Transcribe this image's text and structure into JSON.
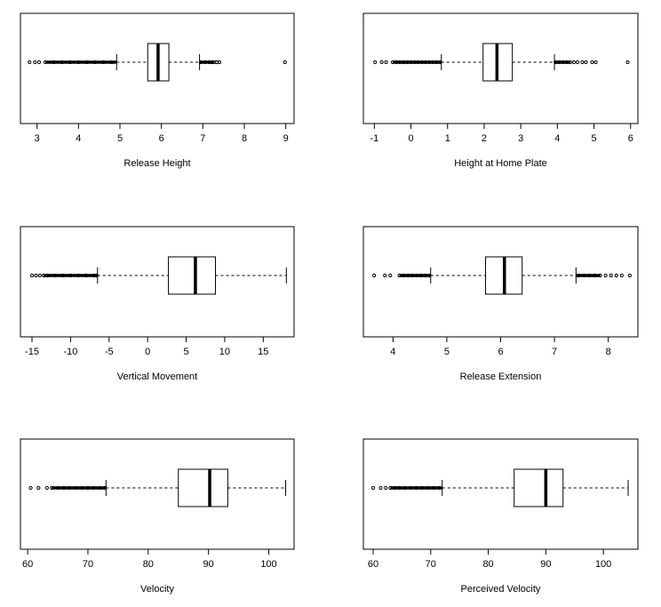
{
  "chart_data": [
    {
      "type": "boxplot",
      "xlabel": "Release Height",
      "xlim": [
        2.6,
        9.2
      ],
      "ticks": [
        3,
        4,
        5,
        6,
        7,
        8,
        9
      ],
      "whisker_low": 4.92,
      "q1": 5.67,
      "median": 5.92,
      "q3": 6.18,
      "whisker_high": 6.92,
      "outliers_low": [
        2.82,
        2.95,
        3.05,
        3.2,
        3.4,
        3.6,
        3.8,
        4.0,
        4.2,
        4.4,
        4.6,
        4.8
      ],
      "outliers_high": [
        6.95,
        7.05,
        7.15,
        7.22,
        7.28,
        7.34,
        7.4,
        8.98
      ]
    },
    {
      "type": "boxplot",
      "xlabel": "Height at Home Plate",
      "xlim": [
        -1.3,
        6.2
      ],
      "ticks": [
        -1,
        0,
        1,
        2,
        3,
        4,
        5,
        6
      ],
      "whisker_low": 0.83,
      "q1": 1.97,
      "median": 2.35,
      "q3": 2.77,
      "whisker_high": 3.92,
      "outliers_low": [
        -0.98,
        -0.8,
        -0.68,
        -0.5,
        -0.4,
        -0.3,
        -0.2,
        -0.1,
        0.0,
        0.1,
        0.2,
        0.3,
        0.4,
        0.5,
        0.6,
        0.7,
        0.8
      ],
      "outliers_high": [
        3.95,
        4.05,
        4.15,
        4.25,
        4.35,
        4.45,
        4.55,
        4.68,
        4.78,
        4.95,
        5.05,
        5.92
      ]
    },
    {
      "type": "boxplot",
      "xlabel": "Vertical Movement",
      "xlim": [
        -16.5,
        19
      ],
      "ticks": [
        -15,
        -10,
        -5,
        0,
        5,
        10,
        15
      ],
      "whisker_low": -6.5,
      "q1": 2.7,
      "median": 6.2,
      "q3": 8.8,
      "whisker_high": 18.0,
      "outliers_low": [
        -15.0,
        -14.5,
        -14.0,
        -13.5,
        -13.0,
        -12.0,
        -11.0,
        -10.0,
        -9.0,
        -8.0,
        -7.0,
        -6.6
      ],
      "outliers_high": []
    },
    {
      "type": "boxplot",
      "xlabel": "Release Extension",
      "xlim": [
        3.45,
        8.55
      ],
      "ticks": [
        4,
        5,
        6,
        7,
        8
      ],
      "whisker_low": 4.7,
      "q1": 5.72,
      "median": 6.07,
      "q3": 6.4,
      "whisker_high": 7.4,
      "outliers_low": [
        3.65,
        3.85,
        3.95,
        4.12,
        4.2,
        4.28,
        4.36,
        4.44,
        4.52,
        4.6,
        4.68
      ],
      "outliers_high": [
        7.45,
        7.55,
        7.65,
        7.75,
        7.85,
        7.95,
        8.05,
        8.15,
        8.25,
        8.4
      ]
    },
    {
      "type": "boxplot",
      "xlabel": "Velocity",
      "xlim": [
        58.8,
        104.2
      ],
      "ticks": [
        60,
        70,
        80,
        90,
        100
      ],
      "whisker_low": 73.0,
      "q1": 85.0,
      "median": 90.2,
      "q3": 93.2,
      "whisker_high": 102.8,
      "outliers_low": [
        60.5,
        61.8,
        63.2,
        64.0,
        65.0,
        66.0,
        67.0,
        68.0,
        69.0,
        70.0,
        71.0,
        72.0,
        72.8
      ],
      "outliers_high": []
    },
    {
      "type": "boxplot",
      "xlabel": "Perceived Velocity",
      "xlim": [
        58.3,
        106.0
      ],
      "ticks": [
        60,
        70,
        80,
        90,
        100
      ],
      "whisker_low": 72.0,
      "q1": 84.5,
      "median": 90.0,
      "q3": 93.0,
      "whisker_high": 104.3,
      "outliers_low": [
        60.0,
        61.3,
        62.2,
        63.0,
        63.8,
        64.5,
        65.5,
        66.5,
        67.5,
        68.5,
        69.5,
        70.5,
        71.5
      ],
      "outliers_high": []
    }
  ]
}
